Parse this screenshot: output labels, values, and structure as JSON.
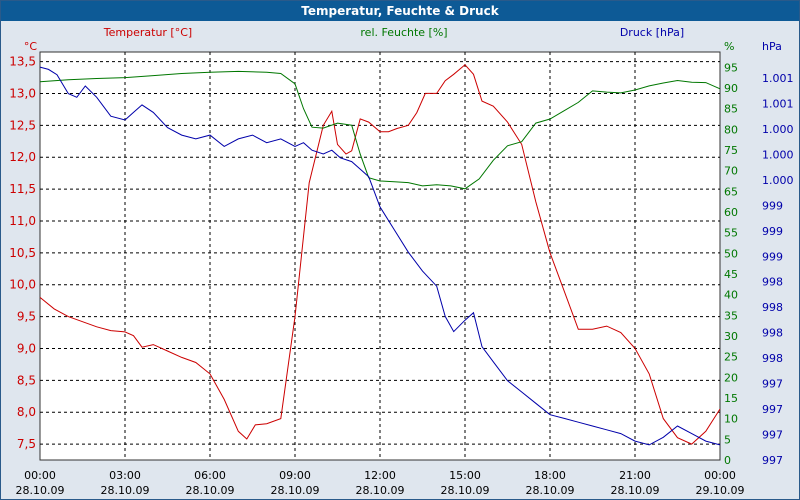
{
  "window": {
    "title": "Temperatur, Feuchte & Druck"
  },
  "colors": {
    "temperature": "#cc0000",
    "humidity": "#007700",
    "pressure": "#0000aa",
    "titlebar": "#0d5a96",
    "plot_bg": "#ffffff"
  },
  "chart_data": {
    "type": "line",
    "title": "Temperatur, Feuchte & Druck",
    "axes": {
      "temperature": {
        "label": "Temperatur [°C]",
        "unit": "°C",
        "range": [
          7.25,
          13.65
        ],
        "ticks": [
          "13,5",
          "13,0",
          "12,5",
          "12,0",
          "11,5",
          "11,0",
          "10,5",
          "10,0",
          "9,5",
          "9,0",
          "8,5",
          "8,0",
          "7,5"
        ],
        "tick_values": [
          13.5,
          13.0,
          12.5,
          12.0,
          11.5,
          11.0,
          10.5,
          10.0,
          9.5,
          9.0,
          8.5,
          8.0,
          7.5
        ]
      },
      "humidity": {
        "label": "rel. Feuchte [%]",
        "unit": "%",
        "range": [
          0,
          98.7
        ],
        "ticks": [
          "95",
          "90",
          "85",
          "80",
          "75",
          "70",
          "65",
          "60",
          "55",
          "50",
          "45",
          "40",
          "35",
          "30",
          "25",
          "20",
          "15",
          "10",
          "5",
          "0"
        ],
        "tick_values": [
          95,
          90,
          85,
          80,
          75,
          70,
          65,
          60,
          55,
          50,
          45,
          40,
          35,
          30,
          25,
          20,
          15,
          10,
          5,
          0
        ]
      },
      "pressure": {
        "label": "Druck [hPa]",
        "unit": "hPa",
        "ticks": [
          "1.001",
          "1.001",
          "1.000",
          "1.000",
          "1.000",
          "999",
          "999",
          "999",
          "998",
          "998",
          "998",
          "998",
          "997",
          "997",
          "997",
          "997"
        ]
      }
    },
    "x_ticks": [
      {
        "time": "00:00",
        "date": "28.10.09"
      },
      {
        "time": "03:00",
        "date": "28.10.09"
      },
      {
        "time": "06:00",
        "date": "28.10.09"
      },
      {
        "time": "09:00",
        "date": "28.10.09"
      },
      {
        "time": "12:00",
        "date": "28.10.09"
      },
      {
        "time": "15:00",
        "date": "28.10.09"
      },
      {
        "time": "18:00",
        "date": "28.10.09"
      },
      {
        "time": "21:00",
        "date": "28.10.09"
      },
      {
        "time": "00:00",
        "date": "29.10.09"
      }
    ],
    "x_range_hours": [
      0,
      24
    ],
    "series": [
      {
        "name": "Temperatur",
        "axis": "temperature",
        "x": [
          0,
          0.5,
          1,
          1.5,
          2,
          2.5,
          3,
          3.3,
          3.6,
          4,
          4.5,
          5,
          5.5,
          6,
          6.5,
          7,
          7.3,
          7.6,
          8,
          8.5,
          9,
          9.5,
          10,
          10.3,
          10.5,
          10.8,
          11,
          11.3,
          11.6,
          12,
          12.3,
          12.6,
          13,
          13.3,
          13.6,
          14,
          14.3,
          14.6,
          15,
          15.3,
          15.6,
          16,
          16.5,
          17,
          17.5,
          18,
          18.5,
          19,
          19.5,
          20,
          20.5,
          21,
          21.5,
          22,
          22.5,
          23,
          23.5,
          24
        ],
        "y": [
          9.8,
          9.62,
          9.5,
          9.42,
          9.34,
          9.28,
          9.26,
          9.2,
          9.02,
          9.06,
          8.96,
          8.86,
          8.78,
          8.6,
          8.2,
          7.7,
          7.58,
          7.8,
          7.82,
          7.9,
          9.5,
          11.6,
          12.5,
          12.72,
          12.2,
          12.05,
          12.1,
          12.6,
          12.55,
          12.4,
          12.4,
          12.45,
          12.5,
          12.7,
          13.0,
          13.0,
          13.2,
          13.3,
          13.45,
          13.3,
          12.88,
          12.8,
          12.55,
          12.2,
          11.3,
          10.5,
          9.9,
          9.3,
          9.3,
          9.35,
          9.25,
          9.0,
          8.6,
          7.9,
          7.6,
          7.5,
          7.7,
          8.05
        ]
      },
      {
        "name": "rel. Feuchte",
        "axis": "humidity",
        "x": [
          0,
          1,
          2,
          3,
          4,
          5,
          6,
          7,
          8,
          8.5,
          9,
          9.3,
          9.6,
          10,
          10.5,
          11,
          11.3,
          11.6,
          12,
          12.5,
          13,
          13.5,
          14,
          14.5,
          15,
          15.5,
          16,
          16.5,
          17,
          17.5,
          18,
          18.5,
          19,
          19.5,
          20,
          20.5,
          21,
          21.5,
          22,
          22.5,
          23,
          23.5,
          24
        ],
        "y": [
          91.5,
          92,
          92.3,
          92.5,
          93,
          93.5,
          93.8,
          94,
          93.8,
          93.5,
          91,
          85,
          80.5,
          80.3,
          81.5,
          81,
          74,
          68.3,
          67.5,
          67.3,
          67.1,
          66.3,
          66.6,
          66.3,
          65.6,
          68,
          72.5,
          76,
          77,
          81.5,
          82.5,
          84.5,
          86.5,
          89.3,
          89.0,
          88.8,
          89.5,
          90.5,
          91.2,
          91.8,
          91.4,
          91.3,
          89.8
        ]
      },
      {
        "name": "Druck",
        "axis": "pressure",
        "x": [
          0,
          0.3,
          0.6,
          1,
          1.3,
          1.6,
          2,
          2.5,
          3,
          3.3,
          3.6,
          4,
          4.5,
          5,
          5.5,
          6,
          6.5,
          7,
          7.5,
          8,
          8.5,
          9,
          9.3,
          9.6,
          10,
          10.3,
          10.6,
          11,
          11.3,
          11.6,
          12,
          12.5,
          13,
          13.5,
          14,
          14.3,
          14.6,
          15,
          15.3,
          15.6,
          16,
          16.5,
          17,
          17.5,
          18,
          18.5,
          19,
          19.5,
          20,
          20.5,
          21,
          21.5,
          22,
          22.5,
          23,
          23.5,
          24
        ],
        "y": [
          1001.45,
          1001.42,
          1001.35,
          1001.1,
          1001.05,
          1001.2,
          1001.05,
          1000.8,
          1000.75,
          1000.85,
          1000.95,
          1000.85,
          1000.65,
          1000.55,
          1000.5,
          1000.55,
          1000.4,
          1000.5,
          1000.55,
          1000.45,
          1000.5,
          1000.4,
          1000.45,
          1000.35,
          1000.3,
          1000.35,
          1000.25,
          1000.2,
          1000.1,
          1000.0,
          999.6,
          999.3,
          999.0,
          998.75,
          998.55,
          998.15,
          997.95,
          998.1,
          998.2,
          997.75,
          997.55,
          997.3,
          997.15,
          997.0,
          996.85,
          996.8,
          996.75,
          996.7,
          996.65,
          996.6,
          996.5,
          996.45,
          996.55,
          996.7,
          996.6,
          996.5,
          996.45
        ]
      }
    ],
    "pressure_axis_range": [
      996.25,
      1001.65
    ]
  }
}
